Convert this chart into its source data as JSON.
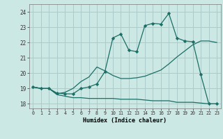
{
  "background_color": "#cce8e4",
  "grid_color": "#aaccca",
  "line_color": "#1a6e65",
  "xlabel": "Humidex (Indice chaleur)",
  "xlim": [
    -0.5,
    23.5
  ],
  "ylim": [
    17.7,
    24.5
  ],
  "yticks": [
    18,
    19,
    20,
    21,
    22,
    23,
    24
  ],
  "xticks": [
    0,
    1,
    2,
    3,
    4,
    5,
    6,
    7,
    8,
    9,
    10,
    11,
    12,
    13,
    14,
    15,
    16,
    17,
    18,
    19,
    20,
    21,
    22,
    23
  ],
  "series1_x": [
    0,
    1,
    2,
    3,
    4,
    5,
    6,
    7,
    8,
    9,
    10,
    11,
    12,
    13,
    14,
    15,
    16,
    17,
    18,
    19,
    20,
    21,
    22,
    23
  ],
  "series1_y": [
    19.1,
    19.0,
    19.0,
    18.7,
    18.65,
    18.65,
    19.0,
    19.1,
    19.3,
    20.1,
    22.3,
    22.55,
    21.5,
    21.4,
    23.1,
    23.25,
    23.2,
    23.9,
    22.3,
    22.1,
    22.05,
    19.9,
    18.0,
    18.0
  ],
  "series2_x": [
    0,
    1,
    2,
    3,
    4,
    5,
    6,
    7,
    8,
    9,
    10,
    11,
    12,
    13,
    14,
    15,
    16,
    17,
    18,
    19,
    20,
    21,
    22,
    23
  ],
  "series2_y": [
    19.1,
    19.0,
    19.0,
    18.65,
    18.75,
    19.0,
    19.45,
    19.75,
    20.4,
    20.15,
    19.85,
    19.65,
    19.65,
    19.7,
    19.8,
    20.0,
    20.2,
    20.6,
    21.05,
    21.45,
    21.85,
    22.1,
    22.1,
    22.0
  ],
  "series3_x": [
    0,
    1,
    2,
    3,
    4,
    5,
    6,
    7,
    8,
    9,
    10,
    11,
    12,
    13,
    14,
    15,
    16,
    17,
    18,
    19,
    20,
    21,
    22,
    23
  ],
  "series3_y": [
    19.1,
    19.0,
    19.0,
    18.6,
    18.5,
    18.4,
    18.4,
    18.35,
    18.35,
    18.35,
    18.35,
    18.3,
    18.3,
    18.3,
    18.25,
    18.2,
    18.2,
    18.2,
    18.1,
    18.1,
    18.1,
    18.05,
    18.0,
    18.0
  ]
}
